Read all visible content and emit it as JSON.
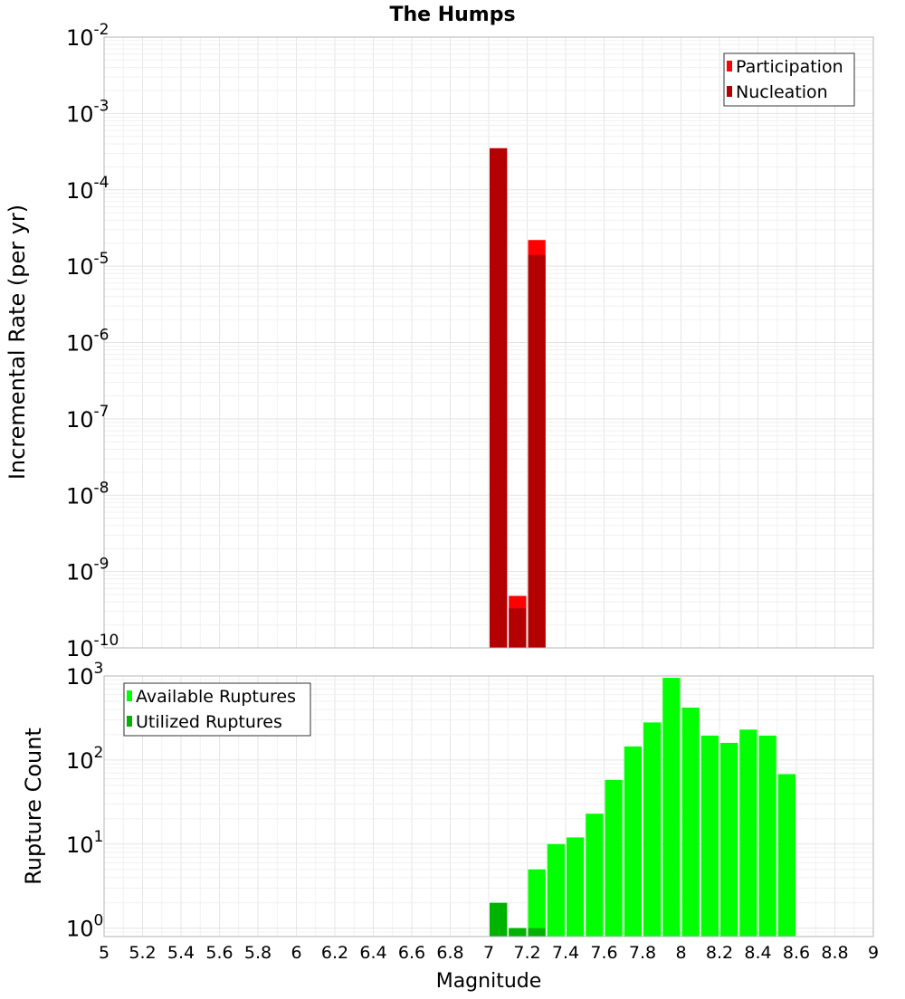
{
  "title": "The Humps",
  "xlabel": "Magnitude",
  "chart_data": [
    {
      "type": "bar",
      "ylabel": "Incremental Rate (per yr)",
      "yscale": "log",
      "ylim_exp": [
        -10,
        -2
      ],
      "xlim": [
        5,
        9
      ],
      "bar_width": 0.1,
      "legend_position": "top-right",
      "grid": true,
      "series": [
        {
          "name": "Participation",
          "color": "#ff0000",
          "x": [
            7.05,
            7.15,
            7.25
          ],
          "values": [
            0.00035,
            4.8e-10,
            2.2e-05
          ]
        },
        {
          "name": "Nucleation",
          "color": "#b30000",
          "x": [
            7.05,
            7.15,
            7.25
          ],
          "values": [
            0.00035,
            3.3e-10,
            1.4e-05
          ]
        }
      ]
    },
    {
      "type": "bar",
      "ylabel": "Rupture Count",
      "yscale": "log",
      "ylim_exp": [
        -0.1,
        3
      ],
      "xlim": [
        5,
        9
      ],
      "bar_width": 0.1,
      "legend_position": "top-left",
      "grid": true,
      "series": [
        {
          "name": "Available Ruptures",
          "color": "#00ff00",
          "x": [
            7.05,
            7.15,
            7.25,
            7.35,
            7.45,
            7.55,
            7.65,
            7.75,
            7.85,
            7.95,
            8.05,
            8.15,
            8.25,
            8.35,
            8.45,
            8.55
          ],
          "values": [
            2,
            1,
            5,
            10,
            12,
            23,
            58,
            145,
            280,
            950,
            420,
            195,
            160,
            230,
            195,
            68
          ]
        },
        {
          "name": "Utilized Ruptures",
          "color": "#00b300",
          "x": [
            7.05,
            7.15,
            7.25
          ],
          "values": [
            2,
            1,
            1
          ]
        }
      ]
    }
  ],
  "x_ticks": [
    "5",
    "5.2",
    "5.4",
    "5.6",
    "5.8",
    "6",
    "6.2",
    "6.4",
    "6.6",
    "6.8",
    "7",
    "7.2",
    "7.4",
    "7.6",
    "7.8",
    "8",
    "8.2",
    "8.4",
    "8.6",
    "8.8",
    "9"
  ]
}
